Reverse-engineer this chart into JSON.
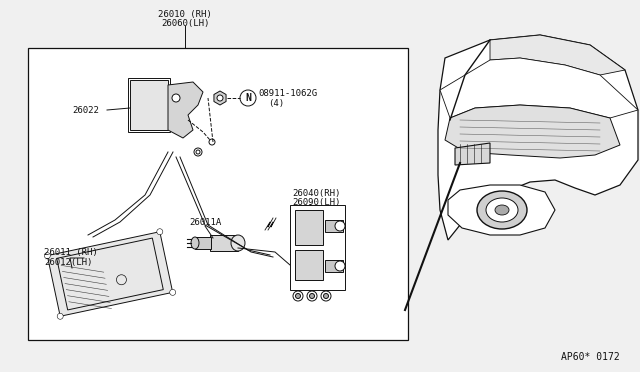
{
  "bg_color": "#f0f0f0",
  "part_code": "AP60* 0172",
  "label_26010": "26010 (RH)",
  "label_26060": "26060(LH)",
  "label_26022": "26022",
  "label_08911_line1": "08911-1062G",
  "label_08911_line2": "(4)",
  "label_26011": "26011 (RH)",
  "label_26012": "26012(LH)",
  "label_26011A": "26011A",
  "label_26040": "26040(RH)",
  "label_26090": "26090(LH)",
  "lc": "#111111"
}
